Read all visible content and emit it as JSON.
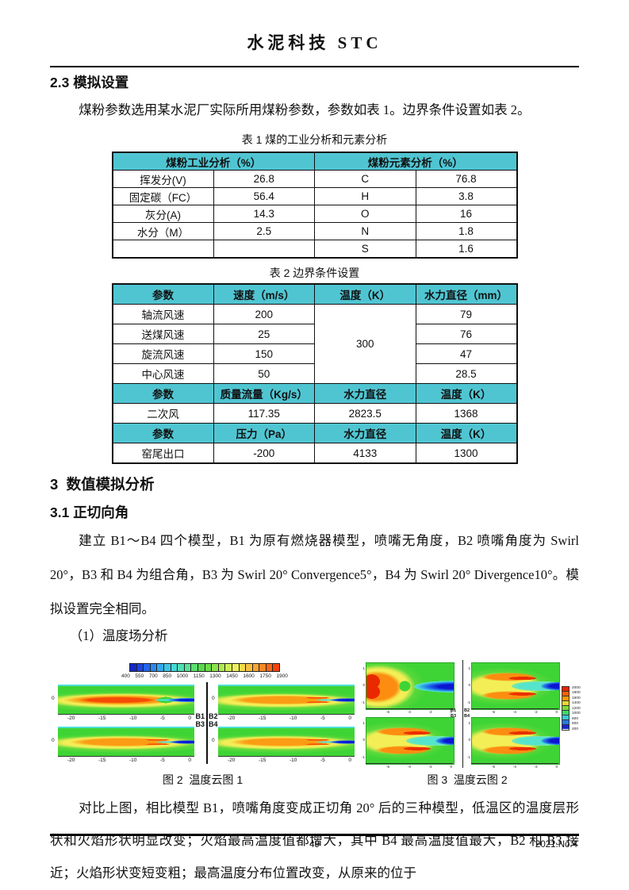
{
  "page": {
    "journal_title": "水泥科技 STC",
    "footer": {
      "page_number": "49",
      "issue": "2021.No.4"
    }
  },
  "section_2_3": {
    "heading": "2.3 模拟设置",
    "paragraph": "煤粉参数选用某水泥厂实际所用煤粉参数，参数如表 1。边界条件设置如表 2。"
  },
  "table1": {
    "caption": "表 1 煤的工业分析和元素分析",
    "header": [
      "煤粉工业分析（%）",
      "煤粉元素分析（%）"
    ],
    "rows": [
      [
        "挥发分(V)",
        "26.8",
        "C",
        "76.8"
      ],
      [
        "固定碳（FC）",
        "56.4",
        "H",
        "3.8"
      ],
      [
        "灰分(A)",
        "14.3",
        "O",
        "16"
      ],
      [
        "水分（M）",
        "2.5",
        "N",
        "1.8"
      ],
      [
        "",
        "",
        "S",
        "1.6"
      ]
    ]
  },
  "table2": {
    "caption": "表 2 边界条件设置",
    "header1": [
      "参数",
      "速度（m/s）",
      "温度（K）",
      "水力直径（mm）"
    ],
    "velocity_rows": [
      [
        "轴流风速",
        "200",
        "79"
      ],
      [
        "送煤风速",
        "25",
        "76"
      ],
      [
        "旋流风速",
        "150",
        "47"
      ],
      [
        "中心风速",
        "50",
        "28.5"
      ]
    ],
    "merged_temperature": "300",
    "header2": [
      "参数",
      "质量流量（Kg/s）",
      "水力直径",
      "温度（K）"
    ],
    "row2": [
      "二次风",
      "117.35",
      "2823.5",
      "1368"
    ],
    "header3": [
      "参数",
      "压力（Pa）",
      "水力直径",
      "温度（K）"
    ],
    "row3": [
      "窑尾出口",
      "-200",
      "4133",
      "1300"
    ]
  },
  "section_3": {
    "heading": "3  数值模拟分析"
  },
  "section_3_1": {
    "heading": "3.1 正切向角",
    "paragraph": "建立 B1～B4 四个模型，B1 为原有燃烧器模型，喷嘴无角度，B2 喷嘴角度为 Swirl 20°，B3 和 B4 为组合角，B3 为 Swirl 20° Convergence5°，B4 为 Swirl 20° Divergence10°。模拟设置完全相同。",
    "subitem": "（1）温度场分析",
    "analysis_paragraph": "对比上图，相比模型 B1，喷嘴角度变成正切角 20° 后的三种模型，低温区的温度层形状和火焰形状明显改变；火焰最高温度值都增大，其中 B4 最高温度值最大，B2 和 B3 接近；火焰形状变短变粗；最高温度分布位置改变，从原来的位于"
  },
  "figure2": {
    "caption": "图 2  温度云图 1",
    "type": "contour",
    "panel_labels": [
      "B1",
      "B2",
      "B3",
      "B4"
    ],
    "colorbar_labels": [
      "400",
      "550",
      "700",
      "850",
      "1000",
      "1150",
      "1300",
      "1450",
      "1600",
      "1750",
      "1900"
    ],
    "colorbar_colors": [
      "#1428c8",
      "#1c46dc",
      "#2466ec",
      "#2c88f0",
      "#34a8ec",
      "#3cc4e4",
      "#44d8d4",
      "#4ce0b4",
      "#54e492",
      "#5cdf6e",
      "#58d84e",
      "#6cdc48",
      "#8ce24c",
      "#aee850",
      "#d0ec54",
      "#eef058",
      "#f4dc4c",
      "#f8c040",
      "#faa434",
      "#fb8828",
      "#f9671a",
      "#f4420c"
    ],
    "x_ticks": [
      "-20",
      "-15",
      "-10",
      "-5",
      "0"
    ],
    "y_tick": "0"
  },
  "figure3": {
    "caption": "图 3  温度云图 2",
    "type": "contour",
    "panel_labels": [
      "B1",
      "B2",
      "B3",
      "B4"
    ],
    "legend_labels": [
      "2000",
      "1800",
      "1600",
      "1400",
      "1200",
      "1000",
      "800",
      "600",
      "400"
    ],
    "legend_colors": [
      "#e32500",
      "#f56300",
      "#fb9a00",
      "#e8d832",
      "#7ed838",
      "#3cd86a",
      "#3cc8d8",
      "#2a7ae0",
      "#1428c8"
    ],
    "x_ticks": [
      "-6",
      "-4",
      "-2",
      "0"
    ],
    "y_ticks": [
      "1",
      "0",
      "-1"
    ]
  },
  "colors": {
    "table_header_bg": "#50c5d2",
    "contour_background_green": "#3fd435"
  }
}
